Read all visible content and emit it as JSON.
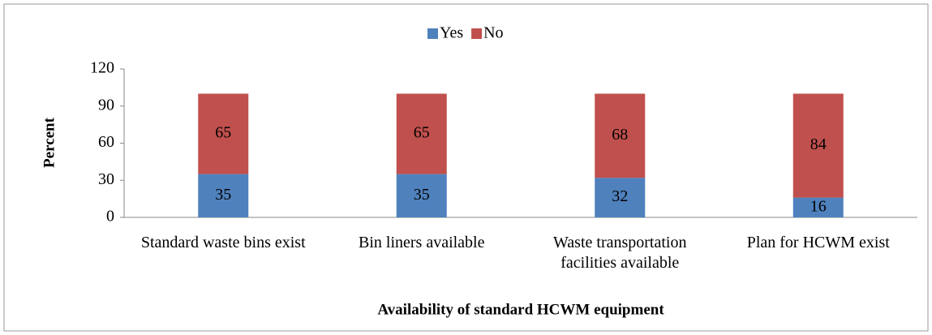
{
  "chart_data": {
    "type": "stacked_bar",
    "x_label": "Availability of standard HCWM equipment",
    "y_label": "Percent",
    "categories": [
      "Standard waste bins exist",
      "Bin liners available",
      "Waste transportation facilities available",
      "Plan for HCWM exist"
    ],
    "series": [
      {
        "name": "Yes",
        "color": "#4f81bd",
        "values": [
          35,
          35,
          32,
          16
        ]
      },
      {
        "name": "No",
        "color": "#c0504d",
        "values": [
          65,
          65,
          68,
          84
        ]
      }
    ],
    "ylim": [
      0,
      120
    ],
    "yticks": [
      0,
      30,
      60,
      90,
      120
    ],
    "legend": "top"
  }
}
